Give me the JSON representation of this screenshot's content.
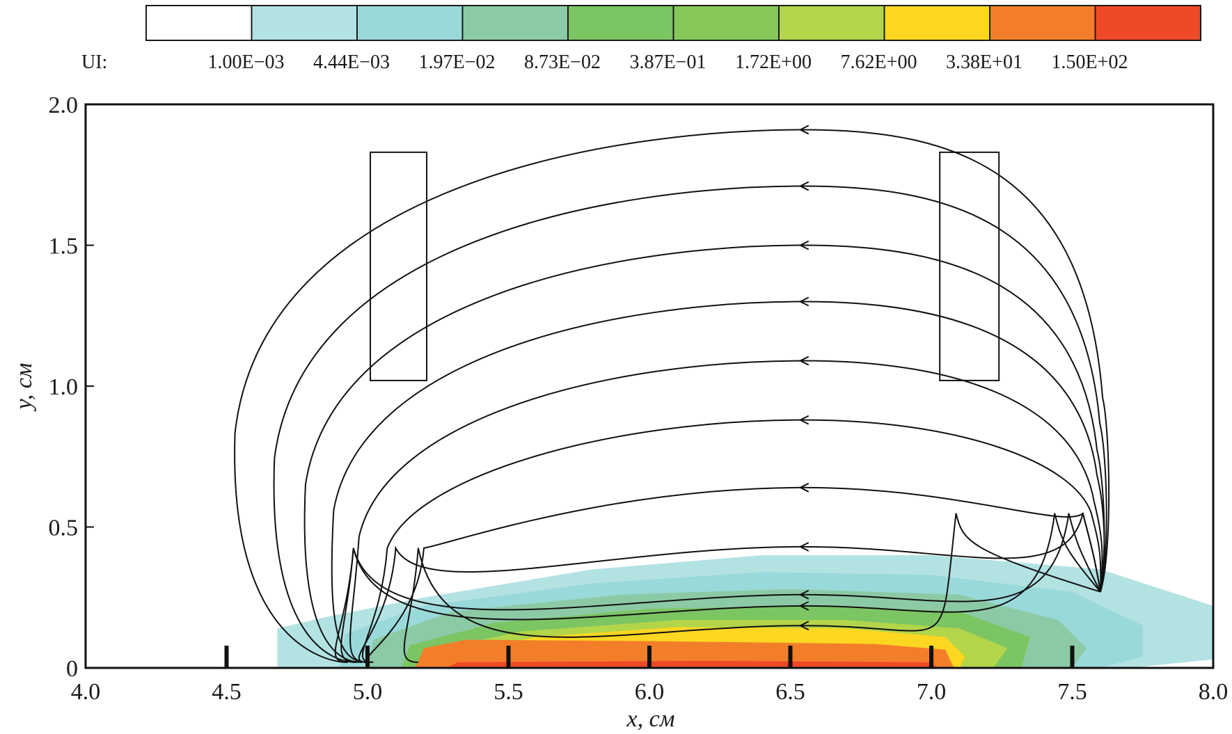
{
  "colorbar": {
    "label": "UI:",
    "levels": [
      "1.00E−03",
      "4.44E−03",
      "1.97E−02",
      "8.73E−02",
      "3.87E−01",
      "1.72E+00",
      "7.62E+00",
      "3.38E+01",
      "1.50E+02"
    ],
    "colors": [
      "#ffffff",
      "#b3e2e3",
      "#9ad9da",
      "#8ccaa5",
      "#7cc563",
      "#86c95a",
      "#b2d54a",
      "#fcd722",
      "#f37e2a",
      "#ef4a27"
    ]
  },
  "chart_data": {
    "type": "contour",
    "xlabel": "x, см",
    "ylabel": "y, см",
    "xlim": [
      4.0,
      8.0
    ],
    "ylim": [
      0,
      2.0
    ],
    "x_ticks": [
      "4.0",
      "4.5",
      "5.0",
      "5.5",
      "6.0",
      "6.5",
      "7.0",
      "7.5",
      "8.0"
    ],
    "y_ticks": [
      "0",
      "0.5",
      "1.0",
      "1.5",
      "2.0"
    ],
    "contour_levels": [
      {
        "level": 1,
        "region": [
          [
            4.68,
            0.0
          ],
          [
            4.68,
            0.14
          ],
          [
            4.85,
            0.18
          ],
          [
            5.2,
            0.25
          ],
          [
            5.8,
            0.35
          ],
          [
            6.4,
            0.4
          ],
          [
            7.0,
            0.4
          ],
          [
            7.6,
            0.35
          ],
          [
            8.0,
            0.22
          ],
          [
            8.0,
            0.03
          ],
          [
            7.7,
            0.0
          ]
        ]
      },
      {
        "level": 2,
        "region": [
          [
            4.9,
            0.0
          ],
          [
            4.92,
            0.12
          ],
          [
            5.2,
            0.22
          ],
          [
            5.8,
            0.3
          ],
          [
            6.4,
            0.34
          ],
          [
            7.0,
            0.33
          ],
          [
            7.5,
            0.27
          ],
          [
            7.75,
            0.15
          ],
          [
            7.75,
            0.04
          ],
          [
            7.6,
            0.0
          ]
        ]
      },
      {
        "level": 3,
        "region": [
          [
            5.0,
            0.0
          ],
          [
            5.02,
            0.1
          ],
          [
            5.3,
            0.2
          ],
          [
            5.9,
            0.26
          ],
          [
            6.5,
            0.28
          ],
          [
            7.1,
            0.26
          ],
          [
            7.45,
            0.17
          ],
          [
            7.55,
            0.07
          ],
          [
            7.5,
            0.0
          ]
        ]
      },
      {
        "level": 4,
        "region": [
          [
            5.12,
            0.0
          ],
          [
            5.15,
            0.08
          ],
          [
            5.45,
            0.16
          ],
          [
            6.0,
            0.21
          ],
          [
            6.6,
            0.22
          ],
          [
            7.1,
            0.2
          ],
          [
            7.35,
            0.11
          ],
          [
            7.32,
            0.0
          ]
        ]
      },
      {
        "level": 6,
        "region": [
          [
            5.2,
            0.0
          ],
          [
            5.22,
            0.06
          ],
          [
            5.55,
            0.13
          ],
          [
            6.1,
            0.17
          ],
          [
            6.7,
            0.17
          ],
          [
            7.1,
            0.14
          ],
          [
            7.27,
            0.07
          ],
          [
            7.22,
            0.0
          ]
        ]
      },
      {
        "level": 7,
        "region": [
          [
            5.25,
            0.0
          ],
          [
            5.3,
            0.05
          ],
          [
            5.6,
            0.11
          ],
          [
            6.1,
            0.145
          ],
          [
            6.7,
            0.14
          ],
          [
            7.05,
            0.11
          ],
          [
            7.12,
            0.04
          ],
          [
            7.1,
            0.0
          ]
        ]
      },
      {
        "level": 8,
        "region": [
          [
            5.17,
            0.0
          ],
          [
            5.2,
            0.07
          ],
          [
            5.35,
            0.1
          ],
          [
            6.0,
            0.095
          ],
          [
            6.8,
            0.085
          ],
          [
            7.05,
            0.065
          ],
          [
            7.08,
            0.0
          ]
        ]
      },
      {
        "level": 9,
        "region": [
          [
            5.28,
            0.0
          ],
          [
            5.32,
            0.02
          ],
          [
            6.2,
            0.025
          ],
          [
            7.0,
            0.02
          ],
          [
            7.02,
            0.0
          ]
        ]
      }
    ],
    "electrodes": [
      {
        "x": [
          5.01,
          5.21
        ],
        "y": [
          1.02,
          1.83
        ]
      },
      {
        "x": [
          7.03,
          7.24
        ],
        "y": [
          1.02,
          1.83
        ]
      }
    ],
    "probes_x": [
      4.5,
      5.0,
      5.5,
      6.0,
      6.5,
      7.0,
      7.5
    ],
    "streamlines": [
      {
        "apex_y": 1.91,
        "left_x": 4.53,
        "right_x": 7.62,
        "end_x": 4.93
      },
      {
        "apex_y": 1.71,
        "left_x": 4.67,
        "right_x": 7.61,
        "end_x": 4.96
      },
      {
        "apex_y": 1.5,
        "left_x": 4.78,
        "right_x": 7.6,
        "end_x": 4.98
      },
      {
        "apex_y": 1.3,
        "left_x": 4.88,
        "right_x": 7.6,
        "end_x": 5.0
      },
      {
        "apex_y": 1.09,
        "left_x": 4.97,
        "right_x": 7.59,
        "end_x": 5.0
      },
      {
        "apex_y": 0.88,
        "left_x": 5.07,
        "right_x": 7.58,
        "end_x": 5.02
      },
      {
        "apex_y": 0.64,
        "left_x": 5.2,
        "right_x": 7.55,
        "end_x": 5.02
      },
      {
        "apex_y": 0.43,
        "left_x": 5.1,
        "right_x": 7.55,
        "end_x": 5.0
      },
      {
        "apex_y": 0.26,
        "left_x": 4.95,
        "right_x": 7.5,
        "end_x": 4.96
      },
      {
        "apex_y": 0.22,
        "left_x": 4.95,
        "right_x": 7.45,
        "end_x": 4.93
      },
      {
        "apex_y": 0.15,
        "left_x": 5.18,
        "right_x": 7.1,
        "end_x": 5.18
      }
    ]
  }
}
